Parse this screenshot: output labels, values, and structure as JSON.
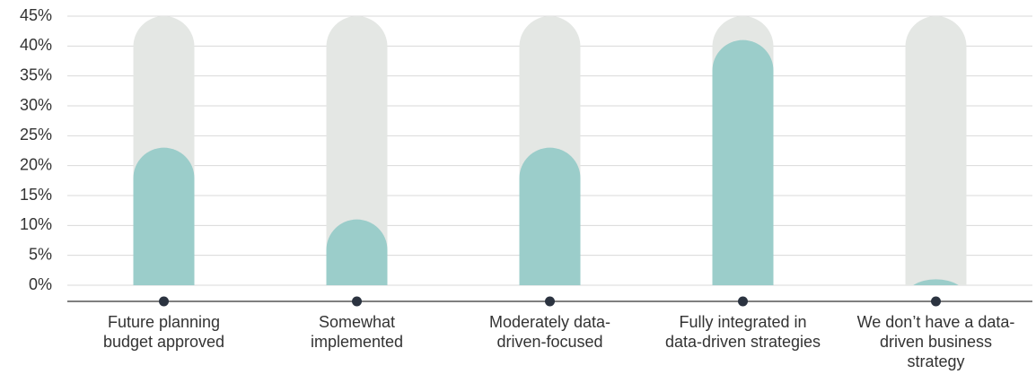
{
  "chart_data": {
    "type": "bar",
    "categories": [
      "Future planning budget approved",
      "Somewhat implemented",
      "Moderately data-driven-focused",
      "Fully integrated in data-driven strategies",
      "We don’t have a data-driven business strategy"
    ],
    "values": [
      23,
      11,
      23,
      41,
      1
    ],
    "color": "#9bcdca",
    "track_color": "#e4e7e4",
    "ylim": [
      0,
      45
    ],
    "yticks": [
      {
        "value": 0,
        "label": "0%"
      },
      {
        "value": 5,
        "label": "5%"
      },
      {
        "value": 10,
        "label": "10%"
      },
      {
        "value": 15,
        "label": "15%"
      },
      {
        "value": 20,
        "label": "20%"
      },
      {
        "value": 25,
        "label": "25%"
      },
      {
        "value": 30,
        "label": "30%"
      },
      {
        "value": 35,
        "label": "35%"
      },
      {
        "value": 40,
        "label": "40%"
      },
      {
        "value": 45,
        "label": "45%"
      }
    ],
    "grid": true
  }
}
